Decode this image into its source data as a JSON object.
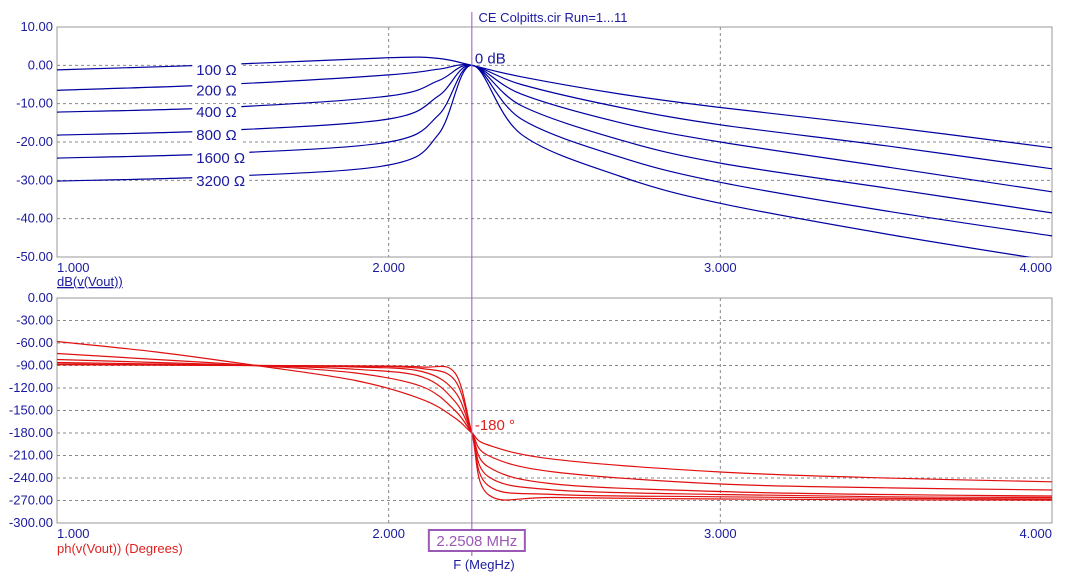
{
  "title": "CE Colpitts.cir Run=1...11",
  "cursor": {
    "value": 2.2508,
    "readout": "2.2508 MHz",
    "color": "#9b59b6"
  },
  "xlabel": "F (MegHz)",
  "colors": {
    "magnitude": "#0000a0",
    "phase": "#e01010",
    "grid": "#888888",
    "text": "#1a1aa0"
  },
  "chart_data": [
    {
      "type": "line",
      "ylabel": "dB(v(Vout))",
      "xlim": [
        1.0,
        4.0
      ],
      "ylim": [
        -50,
        10
      ],
      "x_ticks": [
        "1.000",
        "2.000",
        "3.000",
        "4.000"
      ],
      "y_ticks": [
        "10.00",
        "0.00",
        "-10.00",
        "-20.00",
        "-30.00",
        "-40.00",
        "-50.00"
      ],
      "grid": true,
      "annotation": "0 dB",
      "series": [
        {
          "name": "100 Ω",
          "x": [
            1.0,
            1.5,
            2.0,
            2.15,
            2.2508,
            2.4,
            2.7,
            3.0,
            3.5,
            4.0
          ],
          "values": [
            -1.2,
            0.2,
            2.0,
            1.8,
            0.0,
            -3.0,
            -7.5,
            -11.0,
            -16.0,
            -21.5
          ]
        },
        {
          "name": "200 Ω",
          "x": [
            1.0,
            1.5,
            2.0,
            2.15,
            2.2508,
            2.4,
            2.7,
            3.0,
            3.5,
            4.0
          ],
          "values": [
            -6.5,
            -5.0,
            -2.5,
            -1.0,
            0.0,
            -5.0,
            -11.0,
            -15.5,
            -21.0,
            -27.0
          ]
        },
        {
          "name": "400 Ω",
          "x": [
            1.0,
            1.5,
            2.0,
            2.15,
            2.2508,
            2.4,
            2.7,
            3.0,
            3.5,
            4.0
          ],
          "values": [
            -12.2,
            -11.0,
            -8.0,
            -4.0,
            0.0,
            -7.5,
            -15.0,
            -20.0,
            -26.5,
            -33.0
          ]
        },
        {
          "name": "800 Ω",
          "x": [
            1.0,
            1.5,
            2.0,
            2.15,
            2.2508,
            2.4,
            2.7,
            3.0,
            3.5,
            4.0
          ],
          "values": [
            -18.2,
            -17.0,
            -14.0,
            -8.0,
            0.0,
            -10.5,
            -19.5,
            -25.5,
            -32.0,
            -38.5
          ]
        },
        {
          "name": "1600 Ω",
          "x": [
            1.0,
            1.5,
            2.0,
            2.15,
            2.2508,
            2.4,
            2.7,
            3.0,
            3.5,
            4.0
          ],
          "values": [
            -24.2,
            -23.0,
            -20.0,
            -13.0,
            0.0,
            -14.0,
            -24.0,
            -30.5,
            -38.0,
            -44.5
          ]
        },
        {
          "name": "3200 Ω",
          "x": [
            1.0,
            1.5,
            2.0,
            2.15,
            2.2508,
            2.4,
            2.7,
            3.0,
            3.5,
            4.0
          ],
          "values": [
            -30.2,
            -29.0,
            -26.0,
            -18.0,
            0.0,
            -18.0,
            -29.0,
            -36.0,
            -44.0,
            -51.0
          ]
        }
      ]
    },
    {
      "type": "line",
      "ylabel": "ph(v(Vout)) (Degrees)",
      "xlim": [
        1.0,
        4.0
      ],
      "ylim": [
        -300,
        0
      ],
      "x_ticks": [
        "1.000",
        "2.000",
        "3.000",
        "4.000"
      ],
      "y_ticks": [
        "0.00",
        "-30.00",
        "-60.00",
        "-90.00",
        "-120.00",
        "-150.00",
        "-180.00",
        "-210.00",
        "-240.00",
        "-270.00",
        "-300.00"
      ],
      "grid": true,
      "annotation": "-180 °",
      "series": [
        {
          "x": [
            1.0,
            1.3,
            1.6,
            1.9,
            2.1,
            2.2,
            2.2508,
            2.3,
            2.5,
            3.0,
            3.5,
            4.0
          ],
          "values": [
            -58,
            -72,
            -90,
            -110,
            -135,
            -160,
            -180,
            -196,
            -215,
            -232,
            -240,
            -245
          ]
        },
        {
          "x": [
            1.0,
            1.3,
            1.6,
            1.9,
            2.1,
            2.2,
            2.2508,
            2.3,
            2.5,
            3.0,
            3.5,
            4.0
          ],
          "values": [
            -74,
            -82,
            -90,
            -100,
            -118,
            -150,
            -180,
            -210,
            -232,
            -248,
            -253,
            -256
          ]
        },
        {
          "x": [
            1.0,
            1.3,
            1.6,
            1.9,
            2.1,
            2.2,
            2.2508,
            2.3,
            2.5,
            3.0,
            3.5,
            4.0
          ],
          "values": [
            -82,
            -86,
            -90,
            -95,
            -105,
            -138,
            -180,
            -225,
            -248,
            -258,
            -262,
            -264
          ]
        },
        {
          "x": [
            1.0,
            1.3,
            1.6,
            1.9,
            2.1,
            2.2,
            2.2508,
            2.3,
            2.5,
            3.0,
            3.5,
            4.0
          ],
          "values": [
            -86,
            -88,
            -90,
            -92,
            -98,
            -125,
            -180,
            -238,
            -256,
            -262,
            -265,
            -266
          ]
        },
        {
          "x": [
            1.0,
            1.3,
            1.6,
            1.9,
            2.1,
            2.2,
            2.2508,
            2.3,
            2.5,
            3.0,
            3.5,
            4.0
          ],
          "values": [
            -88,
            -89,
            -90,
            -91,
            -94,
            -110,
            -180,
            -250,
            -262,
            -265,
            -267,
            -268
          ]
        },
        {
          "x": [
            1.0,
            1.3,
            1.6,
            1.9,
            2.1,
            2.2,
            2.2508,
            2.3,
            2.5,
            3.0,
            3.5,
            4.0
          ],
          "values": [
            -89,
            -89.5,
            -90,
            -90.5,
            -92,
            -100,
            -180,
            -262,
            -266,
            -268,
            -269,
            -269.5
          ]
        }
      ]
    }
  ]
}
